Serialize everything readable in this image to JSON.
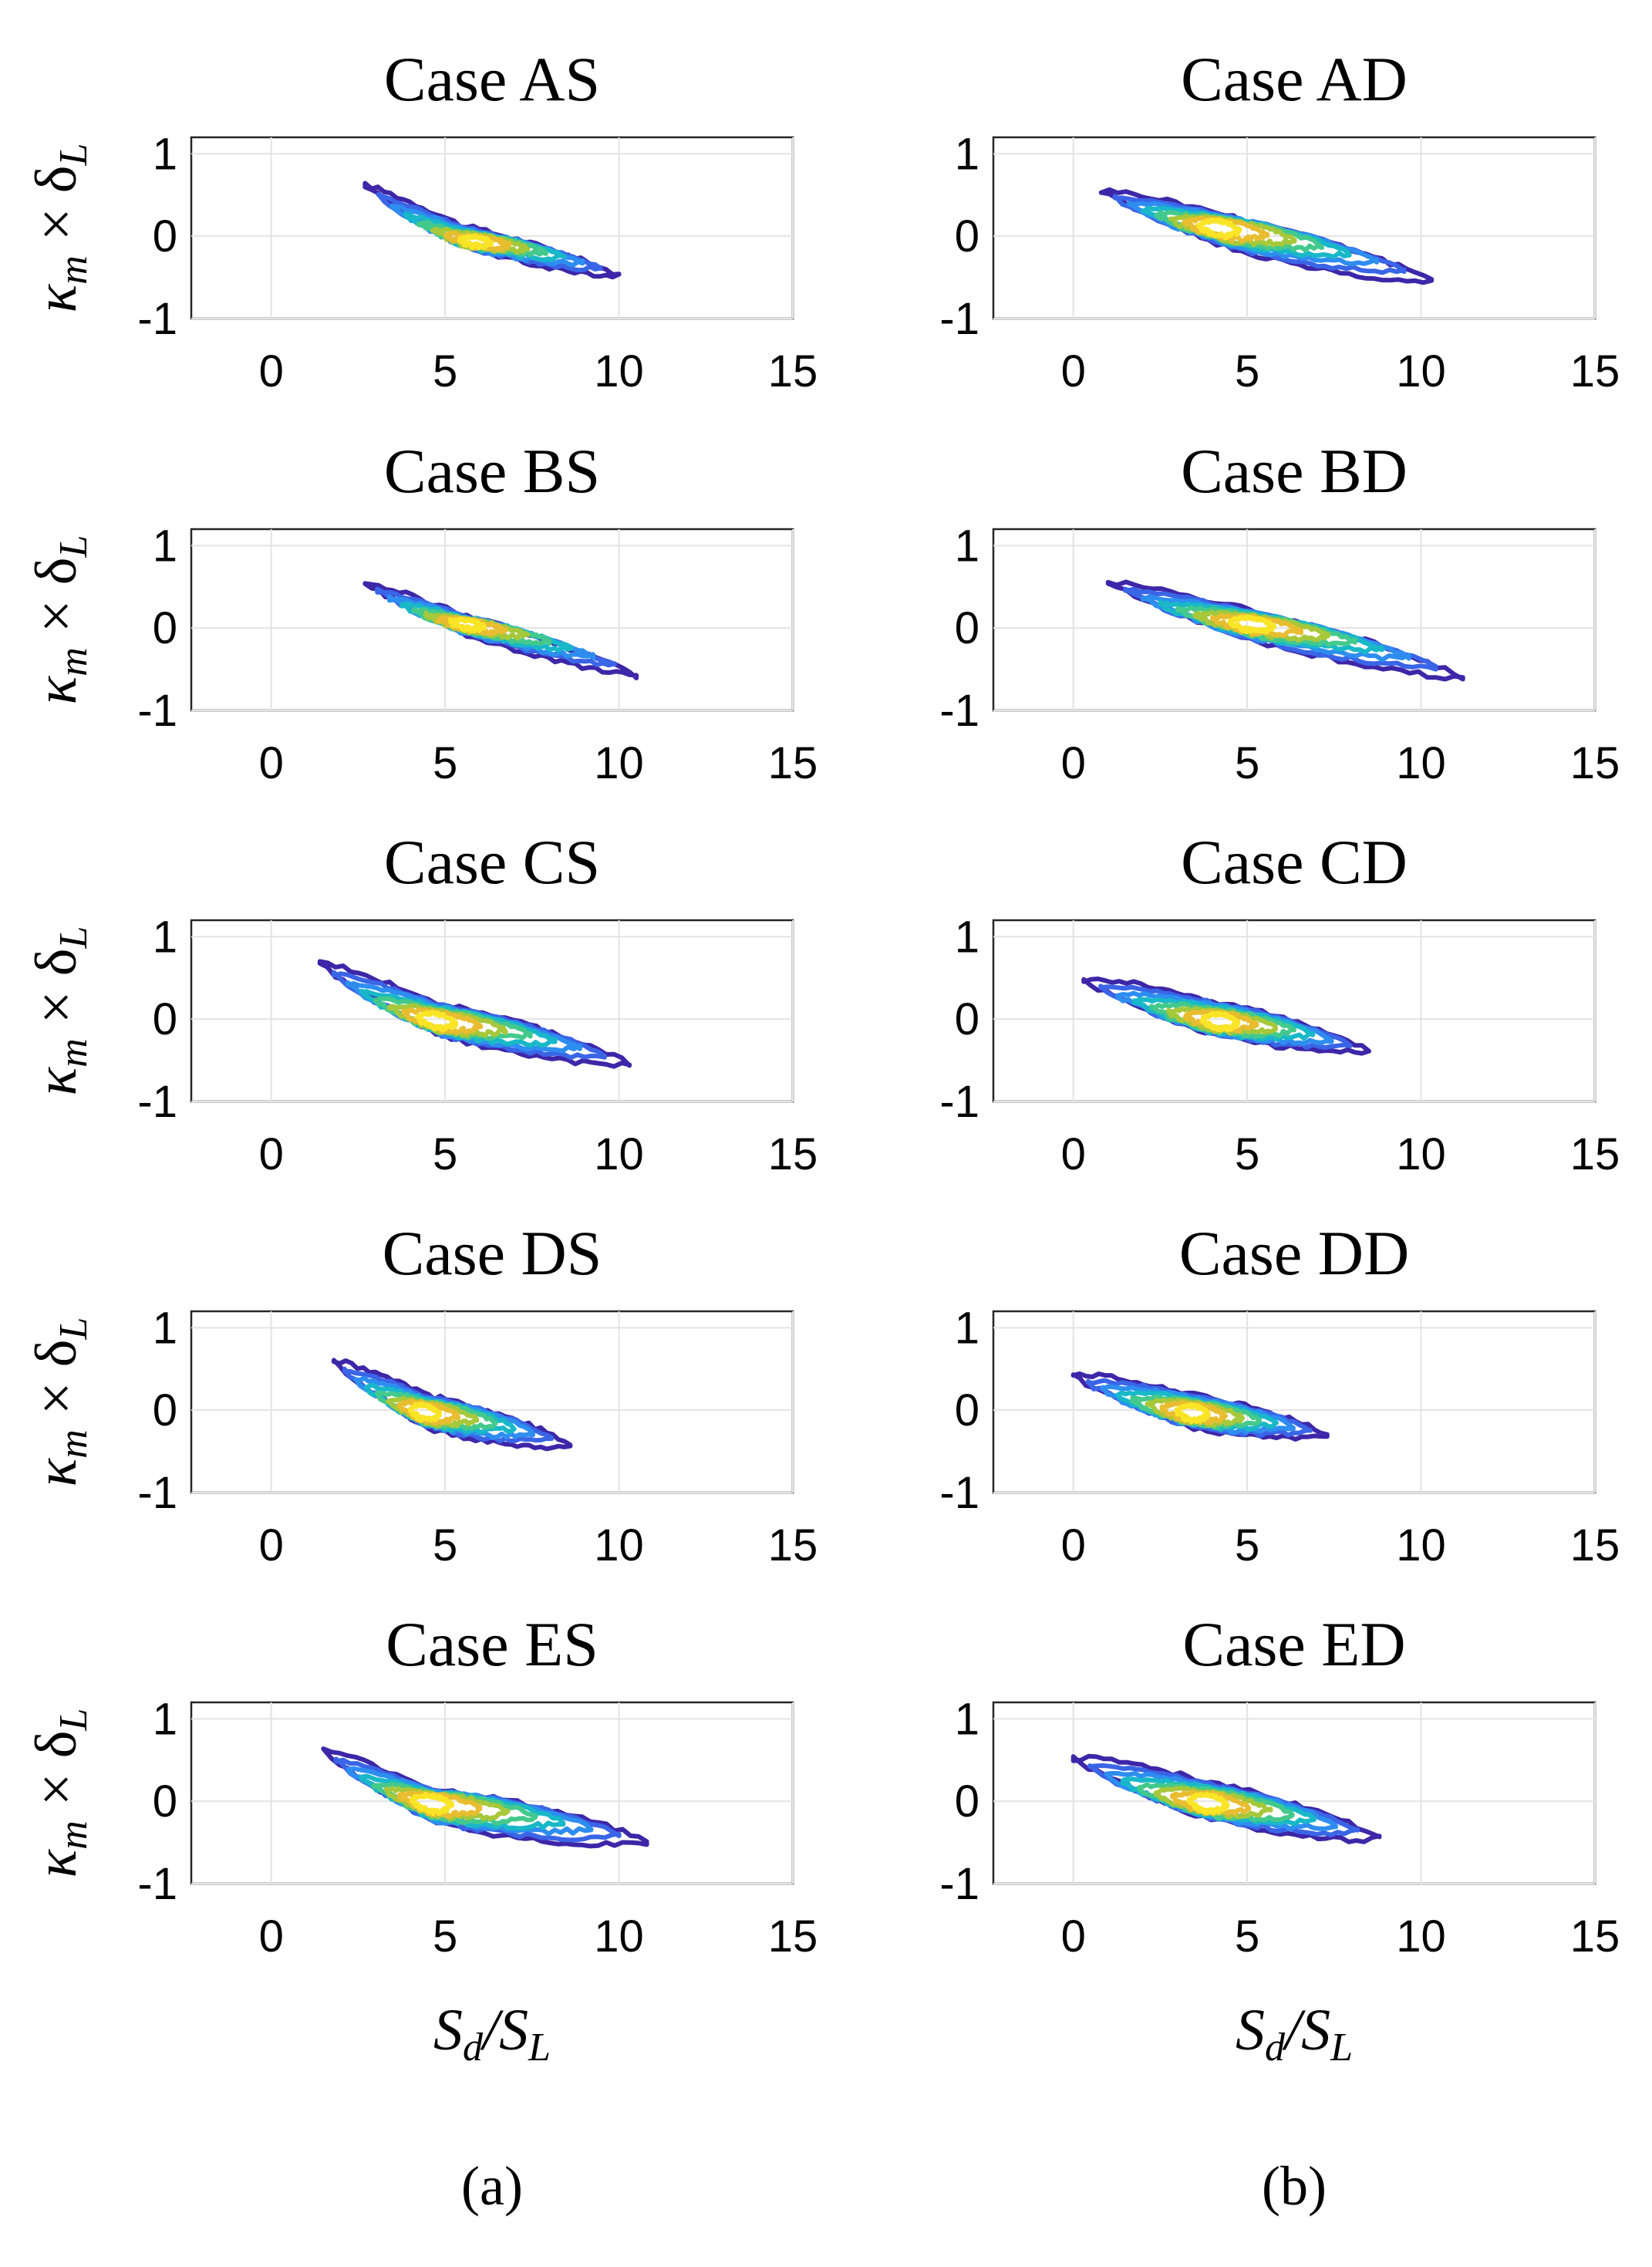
{
  "chart_data": {
    "type": "contour",
    "x_ticks": [
      "0",
      "5",
      "10",
      "15"
    ],
    "y_ticks": [
      "1",
      "0",
      "-1"
    ],
    "xlim": [
      -2.3,
      15
    ],
    "ylim": [
      -1,
      1.2
    ],
    "xlabel": "S_d/S_L",
    "xlabel_parts": {
      "main": "S",
      "sub1": "d",
      "slash": "/S",
      "sub2": "L"
    },
    "ylabel": "κ_m × δ_L",
    "ylabel_parts": {
      "kappa": "κ",
      "sub_m": "m",
      "times": " × δ",
      "sub_L": "L"
    },
    "level_colors": [
      "#3e26a8",
      "#3a65e6",
      "#2d8ef0",
      "#18b8c8",
      "#44c98c",
      "#a6c83a",
      "#e9bd30",
      "#f9e526"
    ],
    "panel_labels": [
      "(a)",
      "(b)"
    ],
    "panels": [
      {
        "id": "AS",
        "title": "Case AS",
        "column": 0,
        "row": 0,
        "trend": [
          [
            2.7,
            0.62
          ],
          [
            5.5,
            0.0
          ],
          [
            10.0,
            -0.48
          ]
        ],
        "width": 0.13,
        "core": [
          5.8,
          -0.08
        ]
      },
      {
        "id": "AD",
        "title": "Case AD",
        "column": 1,
        "row": 0,
        "trend": [
          [
            0.8,
            0.55
          ],
          [
            4.5,
            0.05
          ],
          [
            10.3,
            -0.55
          ]
        ],
        "width": 0.2,
        "core": [
          4.0,
          0.1
        ]
      },
      {
        "id": "BS",
        "title": "Case BS",
        "column": 0,
        "row": 1,
        "trend": [
          [
            2.7,
            0.55
          ],
          [
            5.5,
            0.05
          ],
          [
            10.5,
            -0.58
          ]
        ],
        "width": 0.12,
        "core": [
          5.5,
          0.05
        ]
      },
      {
        "id": "BD",
        "title": "Case BD",
        "column": 1,
        "row": 1,
        "trend": [
          [
            1.0,
            0.55
          ],
          [
            5.0,
            0.05
          ],
          [
            11.2,
            -0.6
          ]
        ],
        "width": 0.18,
        "core": [
          5.0,
          0.05
        ]
      },
      {
        "id": "CS",
        "title": "Case CS",
        "column": 0,
        "row": 2,
        "trend": [
          [
            1.4,
            0.68
          ],
          [
            4.8,
            0.0
          ],
          [
            10.3,
            -0.55
          ]
        ],
        "width": 0.2,
        "core": [
          4.6,
          -0.05
        ]
      },
      {
        "id": "CD",
        "title": "Case CD",
        "column": 1,
        "row": 2,
        "trend": [
          [
            0.3,
            0.48
          ],
          [
            4.0,
            0.02
          ],
          [
            8.5,
            -0.38
          ]
        ],
        "width": 0.2,
        "core": [
          4.2,
          -0.05
        ]
      },
      {
        "id": "DS",
        "title": "Case DS",
        "column": 0,
        "row": 3,
        "trend": [
          [
            1.8,
            0.6
          ],
          [
            4.5,
            -0.02
          ],
          [
            8.6,
            -0.42
          ]
        ],
        "width": 0.2,
        "core": [
          4.3,
          -0.05
        ]
      },
      {
        "id": "DD",
        "title": "Case DD",
        "column": 1,
        "row": 3,
        "trend": [
          [
            0.0,
            0.42
          ],
          [
            3.5,
            -0.02
          ],
          [
            7.3,
            -0.3
          ]
        ],
        "width": 0.2,
        "core": [
          3.4,
          -0.05
        ]
      },
      {
        "id": "ES",
        "title": "Case ES",
        "column": 0,
        "row": 4,
        "trend": [
          [
            1.5,
            0.62
          ],
          [
            4.6,
            -0.05
          ],
          [
            10.8,
            -0.5
          ]
        ],
        "width": 0.22,
        "core": [
          4.4,
          -0.02
        ]
      },
      {
        "id": "ED",
        "title": "Case ED",
        "column": 1,
        "row": 4,
        "trend": [
          [
            0.0,
            0.52
          ],
          [
            3.8,
            0.02
          ],
          [
            8.8,
            -0.45
          ]
        ],
        "width": 0.22,
        "core": [
          3.8,
          -0.05
        ]
      }
    ]
  }
}
